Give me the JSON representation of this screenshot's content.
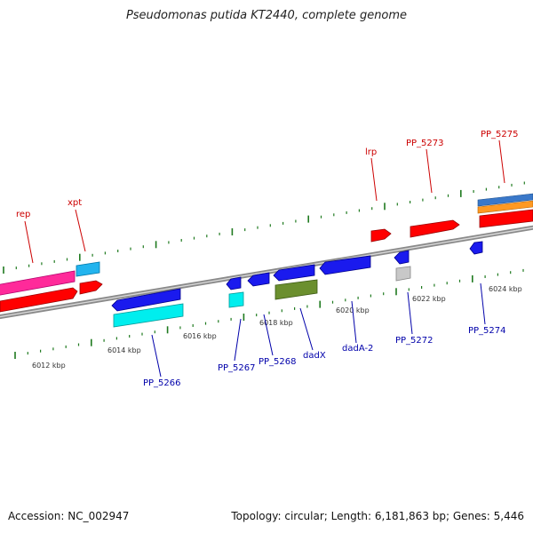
{
  "title": "Pseudomonas putida KT2440, complete genome",
  "footer": {
    "accession": "Accession: NC_002947",
    "summary": "Topology: circular; Length: 6,181,863 bp; Genes: 5,446"
  },
  "colors": {
    "backbone": "#9a9a9a",
    "tick": "#1f7a1f",
    "upper_label": "#cc0000",
    "lower_label": "#0000aa"
  },
  "ruler_labels": [
    "6012 kbp",
    "6014 kbp",
    "6016 kbp",
    "6018 kbp",
    "6020 kbp",
    "6022 kbp",
    "6024 kbp"
  ],
  "upper_gene_labels": [
    "rep",
    "xpt",
    "lrp",
    "PP_5273",
    "PP_5275"
  ],
  "lower_gene_labels": [
    "PP_5266",
    "PP_5267",
    "PP_5268",
    "dadX",
    "dadA-2",
    "PP_5272",
    "PP_5274"
  ]
}
